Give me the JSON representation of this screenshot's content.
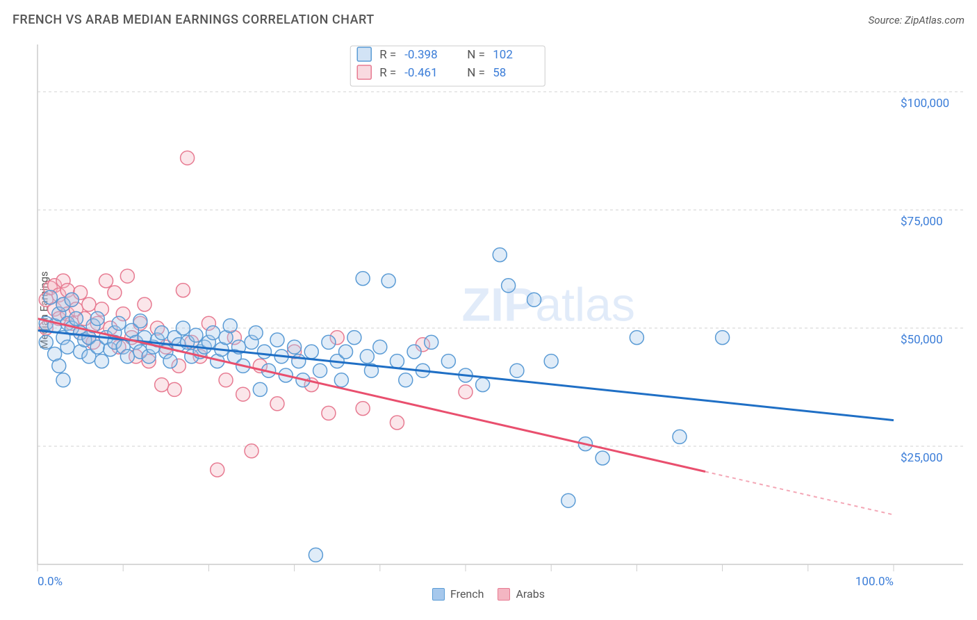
{
  "title": "FRENCH VS ARAB MEDIAN EARNINGS CORRELATION CHART",
  "source": "Source: ZipAtlas.com",
  "watermark": {
    "part1": "ZIP",
    "part2": "atlas"
  },
  "chart": {
    "type": "scatter",
    "y_axis_label": "Median Earnings",
    "xlim": [
      0,
      100
    ],
    "ylim": [
      0,
      110000
    ],
    "y_ticks": [
      {
        "v": 25000,
        "label": "$25,000"
      },
      {
        "v": 50000,
        "label": "$50,000"
      },
      {
        "v": 75000,
        "label": "$75,000"
      },
      {
        "v": 100000,
        "label": "$100,000"
      }
    ],
    "x_ticks": [
      0,
      10,
      20,
      30,
      40,
      50,
      60,
      70,
      80,
      90,
      100
    ],
    "x_tick_labels": {
      "0": "0.0%",
      "100": "100.0%"
    },
    "grid_color": "#d0d0d0",
    "axis_color": "#cccccc",
    "tick_label_color": "#3b7dd8",
    "marker_radius": 10,
    "series": [
      {
        "key": "french",
        "label": "French",
        "fill": "#a6c8ec",
        "stroke": "#5a9bd5",
        "trend_color": "#1f6fc5",
        "R": "-0.398",
        "N": "102",
        "trend": {
          "x1": 0,
          "y1": 49500,
          "x2": 100,
          "y2": 30500,
          "solid_until_x": 100
        },
        "points": [
          [
            1,
            47000
          ],
          [
            1,
            51000
          ],
          [
            1.5,
            56500
          ],
          [
            2,
            44500
          ],
          [
            2,
            50500
          ],
          [
            2.5,
            42000
          ],
          [
            2.5,
            53000
          ],
          [
            3,
            39000
          ],
          [
            3,
            48000
          ],
          [
            3,
            55000
          ],
          [
            3.5,
            51000
          ],
          [
            3.5,
            46000
          ],
          [
            4,
            50000
          ],
          [
            4,
            56000
          ],
          [
            4.5,
            52000
          ],
          [
            5,
            45000
          ],
          [
            5,
            49000
          ],
          [
            5.5,
            47500
          ],
          [
            6,
            48000
          ],
          [
            6,
            44000
          ],
          [
            6.5,
            50500
          ],
          [
            7,
            46000
          ],
          [
            7,
            52000
          ],
          [
            7.5,
            43000
          ],
          [
            8,
            48000
          ],
          [
            8.5,
            45500
          ],
          [
            9,
            49000
          ],
          [
            9,
            47000
          ],
          [
            9.5,
            51000
          ],
          [
            10,
            46000
          ],
          [
            10.5,
            44000
          ],
          [
            11,
            49500
          ],
          [
            11.5,
            47000
          ],
          [
            12,
            45000
          ],
          [
            12,
            51500
          ],
          [
            12.5,
            48000
          ],
          [
            13,
            44000
          ],
          [
            13.5,
            46000
          ],
          [
            14,
            47500
          ],
          [
            14.5,
            49000
          ],
          [
            15,
            45000
          ],
          [
            15.5,
            43000
          ],
          [
            16,
            48000
          ],
          [
            16.5,
            46500
          ],
          [
            17,
            50000
          ],
          [
            17.5,
            47000
          ],
          [
            18,
            44000
          ],
          [
            18.5,
            48500
          ],
          [
            19,
            45000
          ],
          [
            19.5,
            46000
          ],
          [
            20,
            47000
          ],
          [
            20.5,
            49000
          ],
          [
            21,
            43000
          ],
          [
            21.5,
            45500
          ],
          [
            22,
            48000
          ],
          [
            22.5,
            50500
          ],
          [
            23,
            44000
          ],
          [
            23.5,
            46000
          ],
          [
            24,
            42000
          ],
          [
            25,
            47000
          ],
          [
            25.5,
            49000
          ],
          [
            26,
            37000
          ],
          [
            26.5,
            45000
          ],
          [
            27,
            41000
          ],
          [
            28,
            47500
          ],
          [
            28.5,
            44000
          ],
          [
            29,
            40000
          ],
          [
            30,
            46000
          ],
          [
            30.5,
            43000
          ],
          [
            31,
            39000
          ],
          [
            32,
            45000
          ],
          [
            32.5,
            2000
          ],
          [
            33,
            41000
          ],
          [
            34,
            47000
          ],
          [
            35,
            43000
          ],
          [
            35.5,
            39000
          ],
          [
            36,
            45000
          ],
          [
            37,
            48000
          ],
          [
            38,
            60500
          ],
          [
            38.5,
            44000
          ],
          [
            39,
            41000
          ],
          [
            40,
            46000
          ],
          [
            41,
            60000
          ],
          [
            42,
            43000
          ],
          [
            43,
            39000
          ],
          [
            44,
            45000
          ],
          [
            45,
            41000
          ],
          [
            46,
            47000
          ],
          [
            48,
            43000
          ],
          [
            50,
            40000
          ],
          [
            52,
            38000
          ],
          [
            54,
            65500
          ],
          [
            55,
            59000
          ],
          [
            56,
            41000
          ],
          [
            58,
            56000
          ],
          [
            60,
            43000
          ],
          [
            62,
            13500
          ],
          [
            64,
            25500
          ],
          [
            66,
            22500
          ],
          [
            70,
            48000
          ],
          [
            75,
            27000
          ],
          [
            80,
            48000
          ]
        ]
      },
      {
        "key": "arabs",
        "label": "Arabs",
        "fill": "#f4b6c2",
        "stroke": "#e77a91",
        "trend_color": "#e94f6e",
        "R": "-0.461",
        "N": "58",
        "trend": {
          "x1": 0,
          "y1": 52000,
          "x2": 100,
          "y2": 10500,
          "solid_until_x": 78
        },
        "points": [
          [
            1,
            50000
          ],
          [
            1,
            56000
          ],
          [
            1.5,
            58500
          ],
          [
            2,
            54000
          ],
          [
            2,
            59000
          ],
          [
            2.5,
            52000
          ],
          [
            2.5,
            57000
          ],
          [
            3,
            55000
          ],
          [
            3,
            60000
          ],
          [
            3.5,
            53000
          ],
          [
            3.5,
            58000
          ],
          [
            4,
            51000
          ],
          [
            4,
            56000
          ],
          [
            4.5,
            54000
          ],
          [
            5,
            49000
          ],
          [
            5,
            57500
          ],
          [
            5.5,
            52000
          ],
          [
            6,
            48000
          ],
          [
            6,
            55000
          ],
          [
            6.5,
            47000
          ],
          [
            7,
            51000
          ],
          [
            7.5,
            54000
          ],
          [
            8,
            60000
          ],
          [
            8.5,
            50000
          ],
          [
            9,
            57500
          ],
          [
            9.5,
            46000
          ],
          [
            10,
            53000
          ],
          [
            10.5,
            61000
          ],
          [
            11,
            48000
          ],
          [
            11.5,
            44000
          ],
          [
            12,
            51000
          ],
          [
            12.5,
            55000
          ],
          [
            13,
            43000
          ],
          [
            14,
            50000
          ],
          [
            14.5,
            38000
          ],
          [
            15,
            46000
          ],
          [
            16,
            37000
          ],
          [
            16.5,
            42000
          ],
          [
            17,
            58000
          ],
          [
            17.5,
            86000
          ],
          [
            18,
            47000
          ],
          [
            19,
            44000
          ],
          [
            20,
            51000
          ],
          [
            21,
            20000
          ],
          [
            22,
            39000
          ],
          [
            23,
            48000
          ],
          [
            24,
            36000
          ],
          [
            25,
            24000
          ],
          [
            26,
            42000
          ],
          [
            28,
            34000
          ],
          [
            30,
            45000
          ],
          [
            32,
            38000
          ],
          [
            34,
            32000
          ],
          [
            35,
            48000
          ],
          [
            38,
            33000
          ],
          [
            42,
            30000
          ],
          [
            45,
            46500
          ],
          [
            50,
            36500
          ]
        ]
      }
    ]
  },
  "stats_legend": {
    "R_label": "R =",
    "N_label": "N ="
  },
  "colors": {
    "text": "#555555",
    "accent": "#3b7dd8",
    "background": "#ffffff"
  }
}
